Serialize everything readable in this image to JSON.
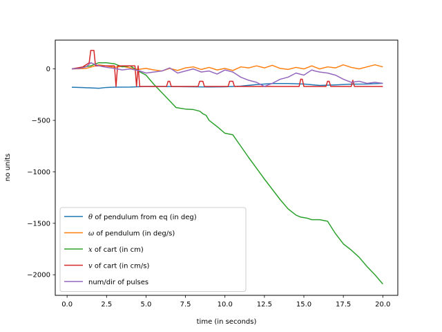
{
  "chart_data": {
    "type": "line",
    "title": "",
    "xlabel": "time (in seconds)",
    "ylabel": "no units",
    "xlim": [
      -0.75,
      20.95
    ],
    "ylim": [
      -2200,
      280
    ],
    "xticks": [
      0.0,
      2.5,
      5.0,
      7.5,
      10.0,
      12.5,
      15.0,
      17.5,
      20.0
    ],
    "xtick_labels": [
      "0.0",
      "2.5",
      "5.0",
      "7.5",
      "10.0",
      "12.5",
      "15.0",
      "17.5",
      "20.0"
    ],
    "yticks": [
      0,
      -500,
      -1000,
      -1500,
      -2000
    ],
    "ytick_labels": [
      "0",
      "−500",
      "−1000",
      "−1500",
      "−2000"
    ],
    "grid": false,
    "legend_position": "lower-left",
    "series": [
      {
        "name_prefix": "θ",
        "name_suffix": " of pendulum from eq (in deg)",
        "color": "#1f77b4",
        "x": [
          0.3,
          1.0,
          2.0,
          2.5,
          3.0,
          4.0,
          5.0,
          6.0,
          7.0,
          8.0,
          9.0,
          10.0,
          11.0,
          12.0,
          13.0,
          14.0,
          15.0,
          16.0,
          17.0,
          18.0,
          19.0,
          20.0
        ],
        "y": [
          -178,
          -181,
          -188,
          -180,
          -177,
          -176,
          -170,
          -170,
          -172,
          -174,
          -175,
          -174,
          -167,
          -152,
          -142,
          -142,
          -147,
          -160,
          -155,
          -148,
          -147,
          -140
        ]
      },
      {
        "name_prefix": "ω",
        "name_suffix": " of pendulum (in deg/s)",
        "color": "#ff7f0e",
        "x": [
          0.3,
          0.8,
          1.2,
          1.6,
          2.0,
          2.5,
          3.0,
          3.5,
          4.0,
          4.5,
          5.0,
          5.5,
          6.0,
          6.5,
          7.0,
          7.5,
          8.0,
          8.5,
          9.0,
          9.5,
          10.0,
          10.5,
          11.0,
          11.5,
          12.0,
          12.5,
          13.0,
          13.5,
          14.0,
          14.5,
          15.0,
          15.5,
          16.0,
          16.5,
          17.0,
          17.5,
          18.0,
          18.5,
          19.0,
          19.5,
          20.0
        ],
        "y": [
          0,
          2,
          5,
          22,
          40,
          28,
          15,
          25,
          10,
          -5,
          5,
          -10,
          -20,
          5,
          -15,
          10,
          20,
          -5,
          15,
          -10,
          5,
          -15,
          20,
          10,
          30,
          10,
          35,
          5,
          -5,
          15,
          0,
          30,
          0,
          20,
          10,
          40,
          15,
          0,
          20,
          40,
          20
        ]
      },
      {
        "name_prefix": "x",
        "name_suffix": " of cart (in cm)",
        "color": "#2ca02c",
        "x": [
          0.3,
          1.5,
          2.0,
          2.5,
          3.0,
          3.5,
          4.0,
          4.5,
          5.0,
          5.5,
          6.0,
          6.5,
          6.9,
          7.5,
          8.0,
          8.4,
          8.6,
          8.8,
          9.0,
          9.5,
          10.0,
          10.5,
          11.0,
          11.5,
          12.0,
          12.5,
          13.0,
          13.5,
          14.0,
          14.5,
          14.8,
          15.2,
          15.5,
          16.0,
          16.5,
          17.0,
          17.5,
          18.0,
          18.5,
          19.0,
          19.5,
          20.0
        ],
        "y": [
          0,
          30,
          60,
          60,
          50,
          20,
          30,
          -20,
          -60,
          -150,
          -230,
          -310,
          -375,
          -390,
          -395,
          -410,
          -435,
          -450,
          -500,
          -560,
          -625,
          -640,
          -750,
          -860,
          -965,
          -1070,
          -1170,
          -1270,
          -1360,
          -1420,
          -1440,
          -1450,
          -1465,
          -1465,
          -1480,
          -1600,
          -1700,
          -1760,
          -1830,
          -1920,
          -2000,
          -2090
        ]
      },
      {
        "name_prefix": "v",
        "name_suffix": " of cart  (in cm/s)",
        "color": "#d62728",
        "x": [
          0.3,
          1.0,
          1.4,
          1.5,
          1.7,
          1.8,
          2.5,
          3.0,
          3.1,
          3.2,
          4.3,
          4.4,
          4.5,
          4.6,
          6.3,
          6.4,
          6.5,
          6.6,
          8.3,
          8.4,
          8.6,
          8.7,
          10.2,
          10.3,
          10.5,
          10.6,
          14.7,
          14.8,
          14.9,
          15.0,
          16.4,
          16.5,
          16.6,
          16.7,
          18.0,
          18.1,
          18.2,
          20.0
        ],
        "y": [
          0,
          20,
          60,
          180,
          180,
          30,
          30,
          30,
          -170,
          30,
          30,
          -170,
          30,
          -170,
          -170,
          -120,
          -120,
          -170,
          -170,
          -120,
          -120,
          -170,
          -170,
          -120,
          -120,
          -170,
          -170,
          -100,
          -100,
          -170,
          -170,
          -120,
          -120,
          -170,
          -170,
          -110,
          -170,
          -170
        ]
      },
      {
        "name_prefix": "",
        "name_suffix": "num/dir of pulses",
        "color": "#9467bd",
        "x": [
          0.3,
          0.8,
          1.2,
          1.5,
          2.0,
          2.5,
          3.0,
          3.5,
          4.0,
          4.5,
          5.0,
          5.5,
          6.0,
          6.5,
          7.0,
          7.5,
          8.0,
          8.5,
          9.0,
          9.5,
          10.0,
          10.5,
          11.0,
          11.5,
          12.0,
          12.5,
          13.0,
          13.5,
          14.0,
          14.5,
          15.0,
          15.5,
          15.7,
          16.0,
          16.5,
          17.0,
          17.5,
          18.0,
          18.5,
          19.0,
          19.5,
          20.0
        ],
        "y": [
          0,
          5,
          20,
          60,
          30,
          15,
          5,
          -10,
          0,
          -15,
          -40,
          -30,
          -20,
          10,
          -40,
          -20,
          0,
          -30,
          -20,
          -50,
          -10,
          -30,
          -80,
          -110,
          -130,
          -170,
          -140,
          -100,
          -80,
          -40,
          -60,
          -10,
          -20,
          -30,
          -40,
          -60,
          -100,
          -130,
          -120,
          -140,
          -130,
          -140
        ]
      }
    ]
  }
}
